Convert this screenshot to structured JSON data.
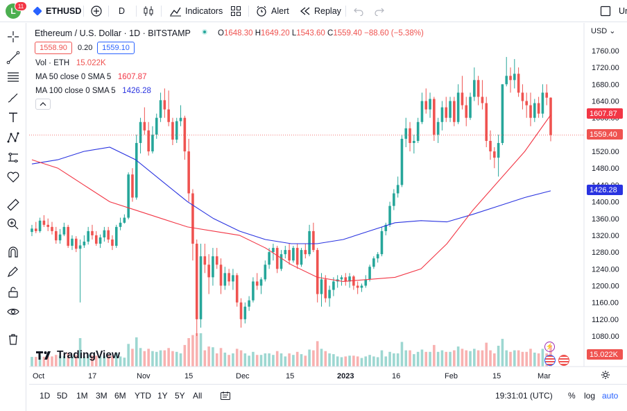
{
  "toolbar": {
    "avatar_letter": "L",
    "badge_count": "11",
    "symbol": "ETHUSD",
    "interval": "D",
    "indicators_label": "Indicators",
    "alert_label": "Alert",
    "replay_label": "Replay",
    "cut_label": "Ur"
  },
  "legend": {
    "title": "Ethereum / U.S. Dollar · 1D · BITSTAMP",
    "o_label": "O",
    "o_value": "1648.30",
    "h_label": "H",
    "h_value": "1649.20",
    "l_label": "L",
    "l_value": "1543.60",
    "c_label": "C",
    "c_value": "1559.40",
    "change": "−88.60 (−5.38%)",
    "bid": "1558.90",
    "spread": "0.20",
    "ask": "1559.10",
    "vol_label": "Vol · ETH",
    "vol_value": "15.022K",
    "ma50_label": "MA 50 close 0 SMA 5",
    "ma50_value": "1607.87",
    "ma100_label": "MA 100 close 0 SMA 5",
    "ma100_value": "1426.28"
  },
  "axis": {
    "currency": "USD",
    "price_ticks": [
      "1760.00",
      "1720.00",
      "1680.00",
      "1640.00",
      "1600.00",
      "1560.00",
      "1520.00",
      "1480.00",
      "1440.00",
      "1400.00",
      "1360.00",
      "1320.00",
      "1280.00",
      "1240.00",
      "1200.00",
      "1160.00",
      "1120.00",
      "1080.00"
    ],
    "last_tag": "1559.40",
    "ma50_tag": "1607.87",
    "ma100_tag": "1426.28",
    "vol_tag": "15.022K",
    "time_ticks": [
      "Oct",
      "17",
      "Nov",
      "15",
      "Dec",
      "15",
      "2023",
      "16",
      "Feb",
      "15",
      "Mar"
    ]
  },
  "brand": "TradingView",
  "bottom": {
    "ranges": [
      "1D",
      "5D",
      "1M",
      "3M",
      "6M",
      "YTD",
      "1Y",
      "5Y",
      "All"
    ],
    "clock": "19:31:01 (UTC)",
    "pct": "%",
    "log": "log",
    "auto": "auto"
  },
  "colors": {
    "up": "#26a69a",
    "down": "#ef5350",
    "ma50": "#f23645",
    "ma100": "#2933e0",
    "accent": "#2962ff"
  },
  "chart_data": {
    "type": "candlestick",
    "symbol": "ETHUSD",
    "exchange": "BITSTAMP",
    "interval": "1D",
    "ylim": [
      1060,
      1770
    ],
    "x_start": "2022-10-01",
    "x_end": "2023-03-03",
    "ohlc": [
      [
        1328,
        1345,
        1318,
        1336
      ],
      [
        1336,
        1352,
        1325,
        1330
      ],
      [
        1330,
        1362,
        1326,
        1355
      ],
      [
        1355,
        1368,
        1340,
        1345
      ],
      [
        1345,
        1360,
        1330,
        1340
      ],
      [
        1340,
        1352,
        1322,
        1330
      ],
      [
        1330,
        1340,
        1300,
        1308
      ],
      [
        1308,
        1335,
        1300,
        1322
      ],
      [
        1322,
        1350,
        1318,
        1340
      ],
      [
        1340,
        1345,
        1290,
        1295
      ],
      [
        1295,
        1320,
        1285,
        1312
      ],
      [
        1312,
        1318,
        1280,
        1288
      ],
      [
        1288,
        1310,
        1160,
        1296
      ],
      [
        1296,
        1320,
        1290,
        1305
      ],
      [
        1305,
        1340,
        1298,
        1330
      ],
      [
        1330,
        1345,
        1310,
        1320
      ],
      [
        1320,
        1330,
        1295,
        1300
      ],
      [
        1300,
        1322,
        1290,
        1315
      ],
      [
        1315,
        1340,
        1305,
        1332
      ],
      [
        1332,
        1340,
        1302,
        1310
      ],
      [
        1310,
        1320,
        1285,
        1295
      ],
      [
        1295,
        1345,
        1290,
        1340
      ],
      [
        1340,
        1362,
        1332,
        1350
      ],
      [
        1350,
        1370,
        1348,
        1362
      ],
      [
        1362,
        1470,
        1358,
        1465
      ],
      [
        1465,
        1480,
        1400,
        1410
      ],
      [
        1410,
        1560,
        1405,
        1540
      ],
      [
        1540,
        1600,
        1515,
        1590
      ],
      [
        1590,
        1625,
        1560,
        1570
      ],
      [
        1570,
        1590,
        1510,
        1520
      ],
      [
        1520,
        1580,
        1515,
        1560
      ],
      [
        1560,
        1610,
        1550,
        1600
      ],
      [
        1600,
        1660,
        1590,
        1642
      ],
      [
        1642,
        1670,
        1600,
        1620
      ],
      [
        1620,
        1665,
        1580,
        1590
      ],
      [
        1590,
        1600,
        1535,
        1548
      ],
      [
        1548,
        1600,
        1540,
        1592
      ],
      [
        1592,
        1630,
        1580,
        1600
      ],
      [
        1600,
        1605,
        1500,
        1520
      ],
      [
        1520,
        1550,
        1400,
        1420
      ],
      [
        1420,
        1430,
        1260,
        1300
      ],
      [
        1300,
        1310,
        1080,
        1120
      ],
      [
        1120,
        1300,
        1100,
        1270
      ],
      [
        1270,
        1300,
        1230,
        1250
      ],
      [
        1250,
        1275,
        1180,
        1220
      ],
      [
        1220,
        1290,
        1200,
        1270
      ],
      [
        1270,
        1290,
        1240,
        1250
      ],
      [
        1250,
        1265,
        1180,
        1200
      ],
      [
        1200,
        1245,
        1190,
        1230
      ],
      [
        1230,
        1240,
        1200,
        1210
      ],
      [
        1210,
        1240,
        1190,
        1225
      ],
      [
        1225,
        1230,
        1150,
        1160
      ],
      [
        1160,
        1170,
        1100,
        1120
      ],
      [
        1120,
        1160,
        1110,
        1150
      ],
      [
        1150,
        1175,
        1140,
        1165
      ],
      [
        1165,
        1220,
        1160,
        1210
      ],
      [
        1210,
        1230,
        1190,
        1200
      ],
      [
        1200,
        1220,
        1180,
        1215
      ],
      [
        1215,
        1260,
        1210,
        1250
      ],
      [
        1250,
        1290,
        1240,
        1280
      ],
      [
        1280,
        1300,
        1260,
        1290
      ],
      [
        1290,
        1295,
        1230,
        1240
      ],
      [
        1240,
        1285,
        1235,
        1275
      ],
      [
        1275,
        1295,
        1265,
        1285
      ],
      [
        1285,
        1300,
        1250,
        1260
      ],
      [
        1260,
        1295,
        1255,
        1290
      ],
      [
        1290,
        1300,
        1240,
        1250
      ],
      [
        1250,
        1290,
        1245,
        1285
      ],
      [
        1285,
        1300,
        1265,
        1275
      ],
      [
        1275,
        1345,
        1270,
        1330
      ],
      [
        1330,
        1350,
        1280,
        1285
      ],
      [
        1285,
        1290,
        1160,
        1180
      ],
      [
        1180,
        1230,
        1150,
        1215
      ],
      [
        1215,
        1225,
        1160,
        1170
      ],
      [
        1170,
        1200,
        1150,
        1190
      ],
      [
        1190,
        1220,
        1175,
        1210
      ],
      [
        1210,
        1225,
        1195,
        1215
      ],
      [
        1215,
        1225,
        1200,
        1220
      ],
      [
        1220,
        1230,
        1200,
        1210
      ],
      [
        1210,
        1230,
        1195,
        1222
      ],
      [
        1222,
        1225,
        1190,
        1200
      ],
      [
        1200,
        1210,
        1180,
        1195
      ],
      [
        1195,
        1205,
        1185,
        1200
      ],
      [
        1200,
        1225,
        1195,
        1215
      ],
      [
        1215,
        1250,
        1210,
        1245
      ],
      [
        1245,
        1270,
        1240,
        1265
      ],
      [
        1265,
        1280,
        1255,
        1275
      ],
      [
        1275,
        1340,
        1270,
        1330
      ],
      [
        1330,
        1350,
        1320,
        1345
      ],
      [
        1345,
        1400,
        1340,
        1390
      ],
      [
        1390,
        1430,
        1380,
        1420
      ],
      [
        1420,
        1460,
        1410,
        1440
      ],
      [
        1440,
        1560,
        1435,
        1550
      ],
      [
        1550,
        1600,
        1530,
        1575
      ],
      [
        1575,
        1590,
        1520,
        1540
      ],
      [
        1540,
        1560,
        1515,
        1545
      ],
      [
        1545,
        1600,
        1540,
        1590
      ],
      [
        1590,
        1660,
        1585,
        1640
      ],
      [
        1640,
        1670,
        1610,
        1620
      ],
      [
        1620,
        1660,
        1600,
        1645
      ],
      [
        1645,
        1650,
        1545,
        1560
      ],
      [
        1560,
        1600,
        1540,
        1590
      ],
      [
        1590,
        1640,
        1570,
        1625
      ],
      [
        1625,
        1650,
        1590,
        1600
      ],
      [
        1600,
        1650,
        1590,
        1640
      ],
      [
        1640,
        1650,
        1580,
        1590
      ],
      [
        1590,
        1680,
        1585,
        1660
      ],
      [
        1660,
        1700,
        1620,
        1630
      ],
      [
        1630,
        1650,
        1580,
        1600
      ],
      [
        1600,
        1660,
        1595,
        1650
      ],
      [
        1650,
        1720,
        1640,
        1690
      ],
      [
        1690,
        1700,
        1630,
        1650
      ],
      [
        1650,
        1690,
        1620,
        1635
      ],
      [
        1635,
        1650,
        1530,
        1545
      ],
      [
        1545,
        1570,
        1500,
        1520
      ],
      [
        1520,
        1530,
        1480,
        1505
      ],
      [
        1505,
        1560,
        1460,
        1540
      ],
      [
        1540,
        1680,
        1535,
        1680
      ],
      [
        1680,
        1745,
        1675,
        1700
      ],
      [
        1700,
        1720,
        1660,
        1690
      ],
      [
        1690,
        1740,
        1670,
        1705
      ],
      [
        1705,
        1720,
        1650,
        1660
      ],
      [
        1660,
        1680,
        1620,
        1640
      ],
      [
        1640,
        1660,
        1600,
        1630
      ],
      [
        1630,
        1660,
        1580,
        1600
      ],
      [
        1600,
        1645,
        1590,
        1635
      ],
      [
        1635,
        1650,
        1600,
        1610
      ],
      [
        1610,
        1680,
        1600,
        1660
      ],
      [
        1660,
        1680,
        1630,
        1648
      ],
      [
        1648,
        1649,
        1544,
        1559
      ]
    ],
    "volume_unit": "K ETH",
    "ma50": [
      1500,
      1480,
      1440,
      1400,
      1380,
      1360,
      1340,
      1330,
      1320,
      1290,
      1250,
      1220,
      1210,
      1215,
      1220,
      1240,
      1300,
      1380,
      1450,
      1520,
      1607
    ],
    "ma100": [
      1490,
      1500,
      1520,
      1530,
      1500,
      1450,
      1400,
      1360,
      1330,
      1310,
      1300,
      1300,
      1310,
      1330,
      1350,
      1355,
      1352,
      1370,
      1390,
      1410,
      1426
    ]
  }
}
